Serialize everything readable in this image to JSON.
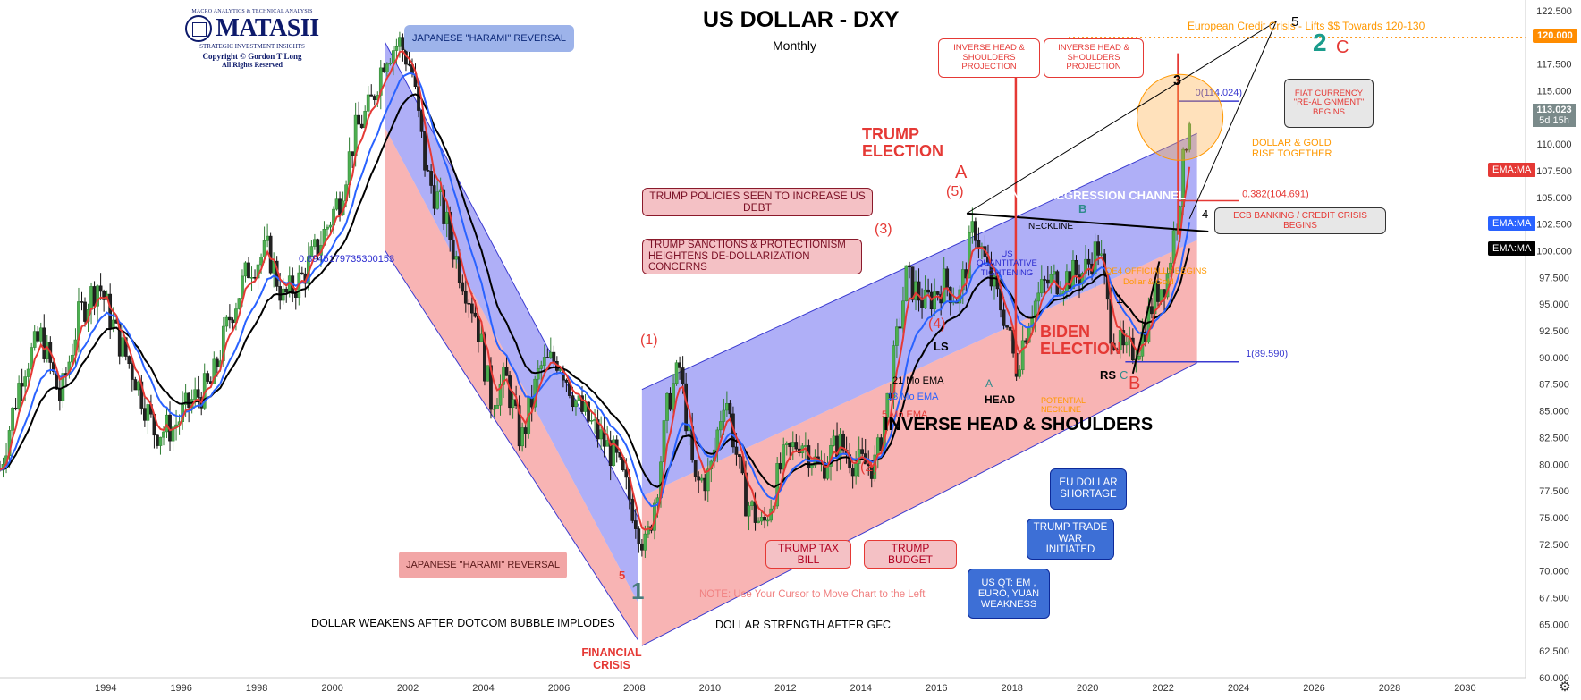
{
  "chart_data": {
    "type": "line",
    "title": "US DOLLAR - DXY",
    "subtitle": "Monthly",
    "xlabel": "",
    "ylabel": "",
    "x_ticks": [
      "1994",
      "1996",
      "1998",
      "2000",
      "2002",
      "2004",
      "2006",
      "2008",
      "2010",
      "2012",
      "2014",
      "2016",
      "2018",
      "2020",
      "2022",
      "2024",
      "2026",
      "2028",
      "2030"
    ],
    "y_ticks": [
      "122.500",
      "120.000",
      "117.500",
      "115.000",
      "112.500",
      "110.000",
      "107.500",
      "105.000",
      "102.500",
      "100.000",
      "97.500",
      "95.000",
      "92.500",
      "90.000",
      "87.500",
      "85.000",
      "82.500",
      "80.000",
      "77.500",
      "75.000",
      "72.500",
      "70.000",
      "67.500",
      "65.000",
      "62.500",
      "60.000"
    ],
    "xlim": [
      1991.2,
      2031.6
    ],
    "ylim": [
      60,
      123.5
    ],
    "grid": false,
    "series": [
      {
        "name": "21 Mo EMA",
        "color": "#000000"
      },
      {
        "name": "13 Mo EMA",
        "color": "#2962ff"
      },
      {
        "name": "5 Mo EMA",
        "color": "#e53935"
      }
    ],
    "price_path": [
      [
        1991.2,
        79.5
      ],
      [
        1991.8,
        89.0
      ],
      [
        1992.3,
        92.0
      ],
      [
        1992.8,
        86.0
      ],
      [
        1993.3,
        94.0
      ],
      [
        1993.8,
        97.0
      ],
      [
        1994.3,
        92.0
      ],
      [
        1994.8,
        88.0
      ],
      [
        1995.3,
        83.0
      ],
      [
        1995.8,
        83.5
      ],
      [
        1996.3,
        86.0
      ],
      [
        1996.8,
        87.5
      ],
      [
        1997.3,
        94.0
      ],
      [
        1997.8,
        98.5
      ],
      [
        1998.3,
        100.0
      ],
      [
        1998.7,
        95.5
      ],
      [
        1999.2,
        97.5
      ],
      [
        1999.7,
        101.0
      ],
      [
        2000.2,
        105.0
      ],
      [
        2000.6,
        111.0
      ],
      [
        2001.0,
        113.5
      ],
      [
        2001.4,
        118.5
      ],
      [
        2001.8,
        119.5
      ],
      [
        2002.1,
        117.0
      ],
      [
        2002.5,
        107.0
      ],
      [
        2002.9,
        104.0
      ],
      [
        2003.3,
        99.0
      ],
      [
        2003.8,
        94.0
      ],
      [
        2004.2,
        86.0
      ],
      [
        2004.6,
        88.0
      ],
      [
        2005.0,
        82.0
      ],
      [
        2005.5,
        89.0
      ],
      [
        2006.0,
        90.0
      ],
      [
        2006.5,
        85.5
      ],
      [
        2007.0,
        83.0
      ],
      [
        2007.5,
        80.5
      ],
      [
        2008.0,
        75.5
      ],
      [
        2008.3,
        72.0
      ],
      [
        2008.6,
        78.0
      ],
      [
        2008.9,
        86.0
      ],
      [
        2009.2,
        89.0
      ],
      [
        2009.6,
        78.0
      ],
      [
        2010.0,
        79.0
      ],
      [
        2010.4,
        87.0
      ],
      [
        2010.9,
        77.0
      ],
      [
        2011.4,
        74.0
      ],
      [
        2011.9,
        80.0
      ],
      [
        2012.4,
        82.5
      ],
      [
        2012.9,
        79.5
      ],
      [
        2013.4,
        82.0
      ],
      [
        2013.9,
        80.0
      ],
      [
        2014.4,
        80.0
      ],
      [
        2014.8,
        88.0
      ],
      [
        2015.2,
        97.5
      ],
      [
        2015.7,
        95.0
      ],
      [
        2016.2,
        97.0
      ],
      [
        2016.6,
        95.5
      ],
      [
        2017.0,
        102.5
      ],
      [
        2017.4,
        97.5
      ],
      [
        2017.8,
        94.0
      ],
      [
        2018.1,
        89.0
      ],
      [
        2018.5,
        94.5
      ],
      [
        2018.9,
        97.0
      ],
      [
        2019.4,
        97.5
      ],
      [
        2019.9,
        98.0
      ],
      [
        2020.3,
        100.5
      ],
      [
        2020.6,
        93.0
      ],
      [
        2021.0,
        90.0
      ],
      [
        2021.4,
        91.5
      ],
      [
        2021.8,
        96.0
      ],
      [
        2022.1,
        97.5
      ],
      [
        2022.4,
        104.0
      ],
      [
        2022.7,
        113.0
      ]
    ],
    "channel": {
      "down_upper": [
        [
          2001.4,
          119.5
        ],
        [
          2008.1,
          75.0
        ]
      ],
      "down_mid": [
        [
          2001.4,
          111.5
        ],
        [
          2008.1,
          67.0
        ]
      ],
      "down_lower": [
        [
          2001.4,
          100.0
        ],
        [
          2008.1,
          63.5
        ]
      ],
      "up_upper": [
        [
          2008.2,
          87.0
        ],
        [
          2022.9,
          111.0
        ]
      ],
      "up_mid": [
        [
          2008.2,
          77.0
        ],
        [
          2022.9,
          101.0
        ]
      ],
      "up_lower": [
        [
          2008.2,
          63.0
        ],
        [
          2022.9,
          89.5
        ]
      ]
    },
    "levels": [
      {
        "label": "0(114.024)",
        "value": 114.024
      },
      {
        "label": "0.382(104.691)",
        "value": 104.691
      },
      {
        "label": "1(89.590)",
        "value": 89.59
      },
      {
        "label": "120.000",
        "value": 120.0
      }
    ],
    "last_price": "113.023",
    "last_price_sub": "5d 15h",
    "ema_tags": [
      "EMA:MA",
      "EMA:MA",
      "EMA:MA"
    ],
    "legend_placement": "none"
  },
  "logo": {
    "top": "MACRO ANALYTICS & TECHNICAL ANALYSIS",
    "name": "MATASII",
    "tagline": "STRATEGIC INVESTMENT INSIGHTS",
    "copyright": "Copyright © Gordon T Long",
    "rights": "All Rights Reserved"
  },
  "boxes": {
    "harami_top": "JAPANESE \"HARAMI\" REVERSAL",
    "harami_bottom": "JAPANESE \"HARAMI\" REVERSAL",
    "ihs_proj_1": "INVERSE HEAD & SHOULDERS PROJECTION",
    "ihs_proj_2": "INVERSE HEAD & SHOULDERS PROJECTION",
    "fiat": "FIAT CURRENCY \"RE-ALIGNMENT\" BEGINS",
    "trump_debt": "TRUMP POLICIES SEEN TO INCREASE US DEBT",
    "trump_sanctions": "TRUMP SANCTIONS & PROTECTIONISM HEIGHTENS DE-DOLLARIZATION CONCERNS",
    "ecb": "ECB BANKING / CREDIT CRISIS BEGINS",
    "trump_tax": "TRUMP TAX BILL",
    "trump_budget": "TRUMP BUDGET",
    "us_qt": "US QT: EM , EURO, YUAN WEAKNESS",
    "trump_trade": "TRUMP TRADE WAR INITIATED",
    "eu_dollar": "EU DOLLAR SHORTAGE"
  },
  "annotations": {
    "euro_crisis": "European Credit Crisis - Lifts $$ Towards 120-130",
    "trump_election": "TRUMP ELECTION",
    "biden_election": "BIDEN ELECTION",
    "linear_regression": "LINEAR REGRESSION CHANNEL",
    "neckline": "NECKLINE",
    "us_qtightening": "US QUANTITATIVE TIGHTENING",
    "qe4": "QE4 OFFICIALLY BEGINS",
    "dollar_gold_small": "Dollar & Gold",
    "dollar_gold": "DOLLAR & GOLD RISE TOGETHER",
    "ratio": "0.8945179735300153",
    "ema21": "21 Mo EMA",
    "ema13": "13 Mo EMA",
    "ema5": "5 Mo EMA",
    "potential_neckline": "POTENTIAL NECKLINE",
    "ihs_title": "INVERSE HEAD & SHOULDERS",
    "head": "HEAD",
    "ls": "LS",
    "rs": "RS",
    "note": "NOTE: Use Your Cursor to Move Chart to the Left",
    "dotcom": "DOLLAR WEAKENS AFTER DOTCOM BUBBLE IMPLODES",
    "gfc": "DOLLAR STRENGTH AFTER GFC",
    "financial_crisis": "FINANCIAL CRISIS",
    "wave_1": "(1)",
    "wave_2": "(2)",
    "wave_3": "(3)",
    "wave_4": "(4)",
    "wave_5": "(5)",
    "big_1": "1",
    "big_2": "2",
    "big_3": "3",
    "big_5": "5",
    "small_1": "1",
    "small_4": "4",
    "small_5": "5",
    "a_top": "A",
    "a_head": "A",
    "b_top": "B",
    "b_bottom": "B",
    "c_top": "C",
    "c_low": "C"
  }
}
